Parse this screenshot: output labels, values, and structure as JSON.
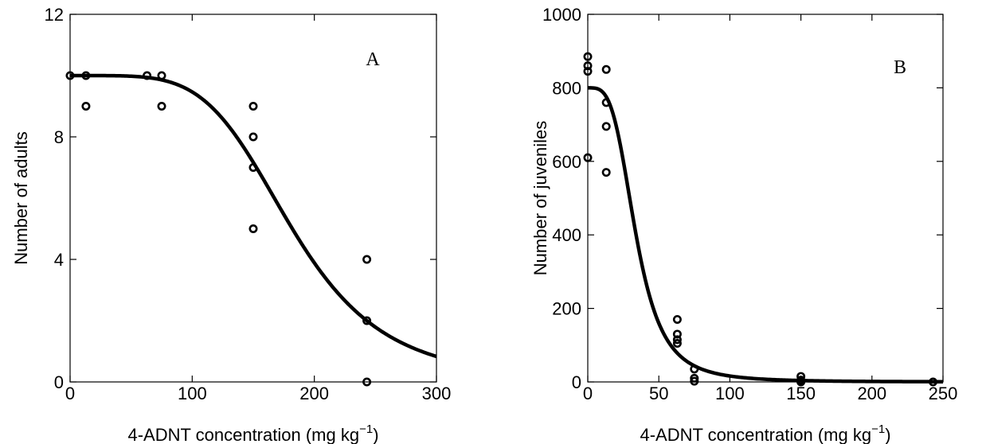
{
  "chart_data": [
    {
      "type": "scatter",
      "panel_label": "A",
      "xlabel_main": "4-ADNT concentration (mg kg",
      "xlabel_unit_exp": "−1",
      "xlabel_close": ")",
      "ylabel": "Number of adults",
      "xlim": [
        0,
        300
      ],
      "ylim": [
        0,
        12
      ],
      "xticks": [
        0,
        100,
        200,
        300
      ],
      "yticks": [
        0,
        4,
        8,
        12
      ],
      "xtick_labels": [
        "0",
        "100",
        "200",
        "300"
      ],
      "ytick_labels": [
        "0",
        "4",
        "8",
        "12"
      ],
      "points": [
        {
          "x": 0,
          "y": 10
        },
        {
          "x": 13,
          "y": 10
        },
        {
          "x": 13,
          "y": 9
        },
        {
          "x": 63,
          "y": 10
        },
        {
          "x": 75,
          "y": 10
        },
        {
          "x": 75,
          "y": 9
        },
        {
          "x": 150,
          "y": 9
        },
        {
          "x": 150,
          "y": 8
        },
        {
          "x": 150,
          "y": 7
        },
        {
          "x": 150,
          "y": 5
        },
        {
          "x": 243,
          "y": 4
        },
        {
          "x": 243,
          "y": 2
        },
        {
          "x": 243,
          "y": 0
        }
      ],
      "fit_curve": {
        "top": 10,
        "ec50": 182,
        "slope": 4.8
      }
    },
    {
      "type": "scatter",
      "panel_label": "B",
      "xlabel_main": "4-ADNT concentration (mg kg",
      "xlabel_unit_exp": "−1",
      "xlabel_close": ")",
      "ylabel": "Number of juveniles",
      "xlim": [
        0,
        250
      ],
      "ylim": [
        0,
        1000
      ],
      "xticks": [
        0,
        50,
        100,
        150,
        200,
        250
      ],
      "yticks": [
        0,
        200,
        400,
        600,
        800,
        1000
      ],
      "xtick_labels": [
        "0",
        "50",
        "100",
        "150",
        "200",
        "250"
      ],
      "ytick_labels": [
        "0",
        "200",
        "400",
        "600",
        "800",
        "1000"
      ],
      "points": [
        {
          "x": 0,
          "y": 885
        },
        {
          "x": 0,
          "y": 860
        },
        {
          "x": 0,
          "y": 845
        },
        {
          "x": 0,
          "y": 610
        },
        {
          "x": 13,
          "y": 850
        },
        {
          "x": 13,
          "y": 760
        },
        {
          "x": 13,
          "y": 695
        },
        {
          "x": 13,
          "y": 570
        },
        {
          "x": 63,
          "y": 170
        },
        {
          "x": 63,
          "y": 130
        },
        {
          "x": 63,
          "y": 115
        },
        {
          "x": 63,
          "y": 105
        },
        {
          "x": 75,
          "y": 35
        },
        {
          "x": 75,
          "y": 10
        },
        {
          "x": 75,
          "y": 2
        },
        {
          "x": 150,
          "y": 15
        },
        {
          "x": 150,
          "y": 5
        },
        {
          "x": 150,
          "y": 0
        },
        {
          "x": 243,
          "y": 0
        }
      ],
      "fit_curve": {
        "top": 800,
        "ec50": 34,
        "slope": 3.6
      }
    }
  ]
}
